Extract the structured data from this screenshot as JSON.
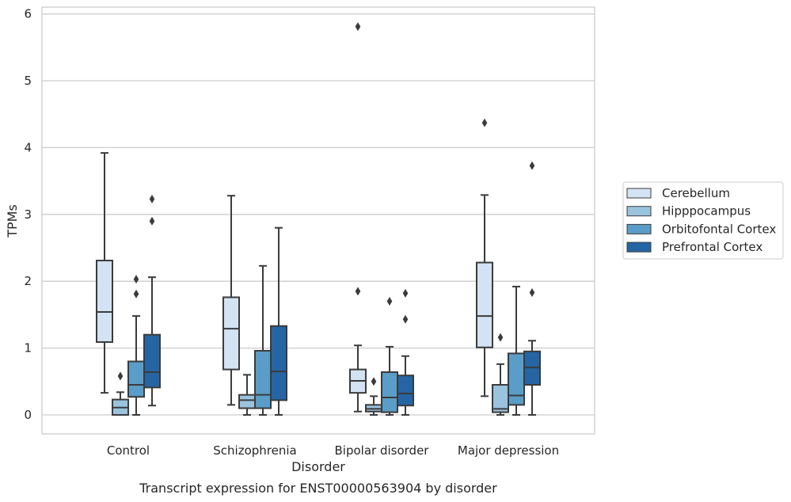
{
  "chart_data": {
    "type": "box",
    "title": "Transcript expression for ENST00000563904 by disorder",
    "xlabel": "Disorder",
    "ylabel": "TPMs",
    "ylim": [
      -0.28,
      6.1
    ],
    "yticks": [
      0,
      1,
      2,
      3,
      4,
      5,
      6
    ],
    "grid": "horizontal",
    "legend_position": "right",
    "categories": [
      "Control",
      "Schizophrenia",
      "Bipolar disorder",
      "Major depression"
    ],
    "series": [
      {
        "name": "Cerebellum",
        "color": "#d3e3f3",
        "boxes": [
          {
            "whislo": 0.33,
            "q1": 1.09,
            "med": 1.54,
            "q3": 2.31,
            "whishi": 3.92,
            "fliers": []
          },
          {
            "whislo": 0.15,
            "q1": 0.68,
            "med": 1.29,
            "q3": 1.76,
            "whishi": 3.28,
            "fliers": []
          },
          {
            "whislo": 0.05,
            "q1": 0.33,
            "med": 0.51,
            "q3": 0.68,
            "whishi": 1.04,
            "fliers": [
              1.85,
              5.81
            ]
          },
          {
            "whislo": 0.28,
            "q1": 1.01,
            "med": 1.48,
            "q3": 2.28,
            "whishi": 3.29,
            "fliers": [
              4.37
            ]
          }
        ]
      },
      {
        "name": "Hipppocampus",
        "color": "#9ac3de",
        "boxes": [
          {
            "whislo": 0.0,
            "q1": 0.0,
            "med": 0.11,
            "q3": 0.23,
            "whishi": 0.34,
            "fliers": [
              0.58
            ]
          },
          {
            "whislo": 0.0,
            "q1": 0.1,
            "med": 0.22,
            "q3": 0.3,
            "whishi": 0.6,
            "fliers": []
          },
          {
            "whislo": 0.0,
            "q1": 0.05,
            "med": 0.09,
            "q3": 0.15,
            "whishi": 0.28,
            "fliers": [
              0.5
            ]
          },
          {
            "whislo": 0.0,
            "q1": 0.04,
            "med": 0.09,
            "q3": 0.45,
            "whishi": 0.76,
            "fliers": [
              1.16
            ]
          }
        ]
      },
      {
        "name": "Orbitofontal Cortex",
        "color": "#5a9dc8",
        "boxes": [
          {
            "whislo": 0.0,
            "q1": 0.27,
            "med": 0.45,
            "q3": 0.8,
            "whishi": 1.48,
            "fliers": [
              1.81,
              2.03
            ]
          },
          {
            "whislo": 0.0,
            "q1": 0.1,
            "med": 0.3,
            "q3": 0.96,
            "whishi": 2.23,
            "fliers": []
          },
          {
            "whislo": 0.0,
            "q1": 0.04,
            "med": 0.26,
            "q3": 0.64,
            "whishi": 1.02,
            "fliers": [
              1.7
            ]
          },
          {
            "whislo": 0.0,
            "q1": 0.15,
            "med": 0.29,
            "q3": 0.92,
            "whishi": 1.92,
            "fliers": []
          }
        ]
      },
      {
        "name": "Prefrontal Cortex",
        "color": "#2565a4",
        "boxes": [
          {
            "whislo": 0.14,
            "q1": 0.41,
            "med": 0.64,
            "q3": 1.2,
            "whishi": 2.06,
            "fliers": [
              2.9,
              3.23
            ]
          },
          {
            "whislo": 0.0,
            "q1": 0.22,
            "med": 0.65,
            "q3": 1.33,
            "whishi": 2.8,
            "fliers": []
          },
          {
            "whislo": 0.0,
            "q1": 0.14,
            "med": 0.32,
            "q3": 0.59,
            "whishi": 0.88,
            "fliers": [
              1.43,
              1.82
            ]
          },
          {
            "whislo": 0.0,
            "q1": 0.45,
            "med": 0.71,
            "q3": 0.95,
            "whishi": 1.11,
            "fliers": [
              1.83,
              3.73
            ]
          }
        ]
      }
    ]
  }
}
